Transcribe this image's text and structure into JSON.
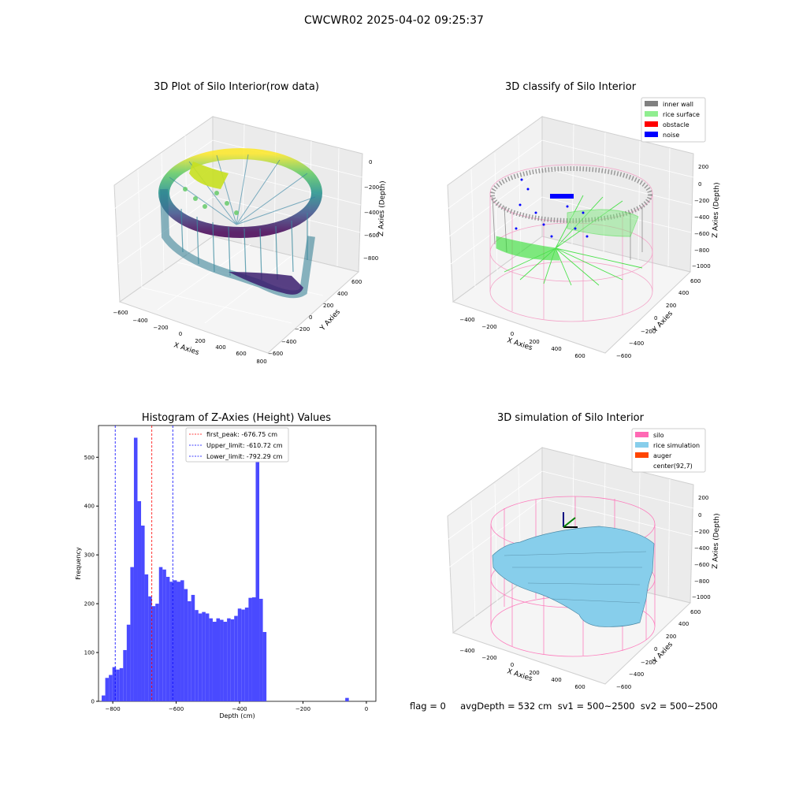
{
  "suptitle": "CWCWR02 2025-04-02 09:25:37",
  "colors": {
    "hist_bar": "#4a4aff",
    "first_peak_line": "#ff0000",
    "limit_line": "#0000ff",
    "inner_wall": "#808080",
    "rice_surface": "#90ee90",
    "obstacle": "#ff0000",
    "noise": "#0000ff",
    "silo": "#ff69b4",
    "rice_simulation": "#87ceeb",
    "auger": "#ff4500"
  },
  "plot1": {
    "title": "3D Plot of Silo Interior(row data)",
    "x_label": "X Axies",
    "y_label": "Y Axies",
    "z_label": "Z Axies (Depth)",
    "x_ticks": [
      "−600",
      "−400",
      "−200",
      "0",
      "200",
      "400",
      "600",
      "800"
    ],
    "y_ticks": [
      "−600",
      "−400",
      "−200",
      "0",
      "200",
      "400",
      "600"
    ],
    "z_ticks": [
      "0",
      "−200",
      "−400",
      "−600",
      "−800"
    ],
    "colormap": "viridis"
  },
  "plot2": {
    "title": "3D classify of Silo Interior",
    "x_label": "X Axies",
    "y_label": "Y Axies",
    "z_label": "Z Axies (Depth)",
    "x_ticks": [
      "−400",
      "−200",
      "0",
      "200",
      "400",
      "600"
    ],
    "y_ticks": [
      "−600",
      "−400",
      "−200",
      "0",
      "200",
      "400",
      "600"
    ],
    "z_ticks": [
      "200",
      "0",
      "−200",
      "−400",
      "−600",
      "−800",
      "−1000"
    ],
    "legend": [
      "inner wall",
      "rice surface",
      "obstacle",
      "noise"
    ]
  },
  "plot4": {
    "title": "3D simulation of Silo Interior",
    "x_label": "X Axies",
    "y_label": "Y Axies",
    "z_label": "Z Axies (Depth)",
    "x_ticks": [
      "−400",
      "−200",
      "0",
      "200",
      "400",
      "600"
    ],
    "y_ticks": [
      "−600",
      "−400",
      "−200",
      "0",
      "200",
      "400",
      "600"
    ],
    "z_ticks": [
      "200",
      "0",
      "−200",
      "−400",
      "−600",
      "−800",
      "−1000"
    ],
    "legend": [
      "silo",
      "rice simulation",
      "auger",
      "center(92,7)"
    ]
  },
  "footer": "flag = 0     avgDepth = 532 cm  sv1 = 500~2500  sv2 = 500~2500",
  "chart_data": {
    "type": "bar",
    "title": "Histogram of Z-Axies (Height) Values",
    "xlabel": "Depth (cm)",
    "ylabel": "Frequency",
    "xlim": [
      -845,
      30
    ],
    "ylim": [
      0,
      565
    ],
    "x_ticks": [
      -800,
      -600,
      -400,
      -200,
      0
    ],
    "x_tick_labels": [
      "−800",
      "−600",
      "−400",
      "−200",
      "0"
    ],
    "y_ticks": [
      0,
      100,
      200,
      300,
      400,
      500
    ],
    "bin_start": -835,
    "bin_width": 11.3,
    "values": [
      12,
      48,
      54,
      70,
      65,
      68,
      105,
      157,
      275,
      540,
      410,
      360,
      260,
      215,
      195,
      200,
      275,
      270,
      255,
      245,
      248,
      245,
      248,
      230,
      205,
      218,
      187,
      180,
      183,
      180,
      170,
      163,
      170,
      167,
      163,
      170,
      168,
      175,
      190,
      188,
      192,
      212,
      213,
      512,
      210,
      142,
      0,
      0,
      0,
      0,
      0,
      0,
      0,
      0,
      0,
      0,
      0,
      0,
      0,
      0,
      0,
      0,
      0,
      0,
      0,
      0,
      0,
      0,
      7
    ],
    "vlines": [
      {
        "label": "first_peak: -676.75 cm",
        "x": -676.75,
        "color": "#ff0000"
      },
      {
        "label": "Upper_limit: -610.72 cm",
        "x": -610.72,
        "color": "#0000ff"
      },
      {
        "label": "Lower_limit: -792.29 cm",
        "x": -792.29,
        "color": "#0000ff"
      }
    ],
    "legend_position": "upper-center"
  }
}
